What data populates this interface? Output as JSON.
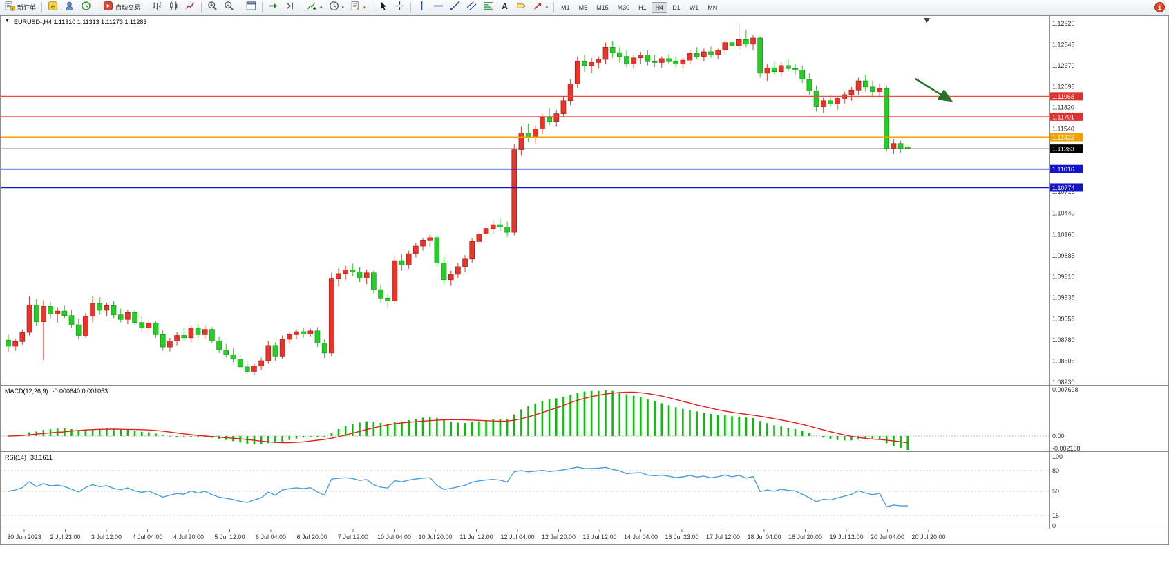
{
  "window": {
    "collapse_marker": "▼"
  },
  "toolbar": {
    "groups": [
      {
        "items": [
          {
            "name": "new-order-button",
            "icon": "new-order-icon",
            "label": "新订单"
          }
        ]
      },
      {
        "items": [
          {
            "name": "metaeditor-button",
            "icon": "metaeditor-icon"
          },
          {
            "name": "profile-button",
            "icon": "user-icon"
          },
          {
            "name": "history-center-button",
            "icon": "history-icon"
          }
        ]
      },
      {
        "items": [
          {
            "name": "autotrading-button",
            "icon": "autotrading-icon",
            "label": "自动交易"
          }
        ]
      },
      {
        "items": [
          {
            "name": "chart-bars-button",
            "icon": "bar-chart-icon"
          },
          {
            "name": "chart-candles-button",
            "icon": "candlestick-icon"
          },
          {
            "name": "chart-line-button",
            "icon": "line-chart-icon"
          }
        ]
      },
      {
        "items": [
          {
            "name": "zoom-in-button",
            "icon": "zoom-in-icon"
          },
          {
            "name": "zoom-out-button",
            "icon": "zoom-out-icon"
          }
        ]
      },
      {
        "items": [
          {
            "name": "tile-windows-button",
            "icon": "tile-windows-icon"
          }
        ]
      },
      {
        "items": [
          {
            "name": "auto-scroll-button",
            "icon": "auto-scroll-icon"
          },
          {
            "name": "chart-shift-button",
            "icon": "chart-shift-icon"
          }
        ]
      },
      {
        "items": [
          {
            "name": "indicators-button",
            "icon": "add-indicator-icon",
            "caret": true
          },
          {
            "name": "periods-button",
            "icon": "clock-icon",
            "caret": true
          },
          {
            "name": "templates-button",
            "icon": "template-icon",
            "caret": true
          }
        ]
      },
      {
        "items": [
          {
            "name": "cursor-button",
            "icon": "cursor-icon"
          },
          {
            "name": "crosshair-button",
            "icon": "crosshair-icon"
          }
        ]
      },
      {
        "items": [
          {
            "name": "vertical-line-button",
            "icon": "vertical-line-icon"
          },
          {
            "name": "horizontal-line-button",
            "icon": "horizontal-line-icon"
          },
          {
            "name": "trendline-button",
            "icon": "trendline-icon"
          },
          {
            "name": "channel-button",
            "icon": "channel-icon"
          },
          {
            "name": "fibonacci-button",
            "icon": "fibonacci-icon"
          },
          {
            "name": "text-button",
            "icon": "text-icon"
          },
          {
            "name": "label-button",
            "icon": "label-icon"
          },
          {
            "name": "arrows-button",
            "icon": "arrows-icon",
            "caret": true
          }
        ]
      }
    ],
    "timeframes": [
      "M1",
      "M5",
      "M15",
      "M30",
      "H1",
      "H4",
      "D1",
      "W1",
      "MN"
    ],
    "active_timeframe": "H4",
    "notification_badge": "1"
  },
  "chart": {
    "title": "EURUSD-,H4 1.11310 1.11313 1.11273 1.11283",
    "y_range": [
      1.0823,
      1.1292
    ],
    "price_axis_labels": [
      "1.12920",
      "1.12645",
      "1.12370",
      "1.12095",
      "1.11820",
      "1.11540",
      "1.10715",
      "1.10440",
      "1.10160",
      "1.09885",
      "1.09610",
      "1.09335",
      "1.09055",
      "1.08780",
      "1.08505",
      "1.08230"
    ],
    "price_tags": [
      {
        "value": "1.11968",
        "price": 1.11968,
        "color": "#e03030",
        "line_color": "#ef4a4a",
        "line_width": 1.2,
        "name": "resistance-line-1"
      },
      {
        "value": "1.11701",
        "price": 1.11701,
        "color": "#e03030",
        "line_color": "#ef4a4a",
        "line_width": 1.2,
        "name": "resistance-line-2"
      },
      {
        "value": "1.11433",
        "price": 1.11433,
        "color": "#f0a200",
        "line_color": "#f0a200",
        "line_width": 2,
        "name": "pivot-line"
      },
      {
        "value": "1.11283",
        "price": 1.11283,
        "color": "#000000",
        "line_color": "#5a5a5a",
        "line_width": 1,
        "name": "bid-price-line"
      },
      {
        "value": "1.11016",
        "price": 1.11016,
        "color": "#1414cc",
        "line_color": "#1414cc",
        "line_width": 1.6,
        "name": "support-line-1"
      },
      {
        "value": "1.10774",
        "price": 1.10774,
        "color": "#1414cc",
        "line_color": "#1414cc",
        "line_width": 1.6,
        "name": "support-line-2"
      }
    ],
    "time_labels": [
      "30 Jun 2023",
      "2 Jul 23:00",
      "3 Jul 12:00",
      "4 Jul 04:00",
      "4 Jul 20:00",
      "5 Jul 12:00",
      "6 Jul 04:00",
      "6 Jul 20:00",
      "7 Jul 12:00",
      "10 Jul 04:00",
      "10 Jul 20:00",
      "11 Jul 12:00",
      "12 Jul 04:00",
      "12 Jul 20:00",
      "13 Jul 12:00",
      "14 Jul 04:00",
      "16 Jul 23:00",
      "17 Jul 12:00",
      "18 Jul 04:00",
      "18 Jul 20:00",
      "19 Jul 12:00",
      "20 Jul 04:00",
      "20 Jul 20:00"
    ]
  },
  "chart_data": {
    "type": "candlestick",
    "symbol": "EURUSD-",
    "timeframe": "H4",
    "up_color": "#e8352a",
    "down_color": "#27cd27",
    "ohlc": [
      [
        1.0878,
        1.0885,
        1.0862,
        1.087
      ],
      [
        1.087,
        1.088,
        1.0864,
        1.0876
      ],
      [
        1.0876,
        1.0892,
        1.0872,
        1.0888
      ],
      [
        1.0888,
        1.0935,
        1.0884,
        1.0924
      ],
      [
        1.0924,
        1.0932,
        1.0896,
        1.0902
      ],
      [
        1.0902,
        1.093,
        1.0852,
        1.0922
      ],
      [
        1.0922,
        1.0928,
        1.0906,
        1.0912
      ],
      [
        1.0912,
        1.0921,
        1.0901,
        1.0916
      ],
      [
        1.0916,
        1.0923,
        1.0907,
        1.091
      ],
      [
        1.091,
        1.0918,
        1.0894,
        1.0898
      ],
      [
        1.0898,
        1.0906,
        1.0879,
        1.0884
      ],
      [
        1.0884,
        1.0913,
        1.0881,
        1.0909
      ],
      [
        1.0909,
        1.0936,
        1.0901,
        1.0926
      ],
      [
        1.0926,
        1.0934,
        1.0911,
        1.0917
      ],
      [
        1.0917,
        1.0927,
        1.0909,
        1.0923
      ],
      [
        1.0923,
        1.0929,
        1.0907,
        1.0911
      ],
      [
        1.0911,
        1.0919,
        1.0901,
        1.0905
      ],
      [
        1.0905,
        1.0917,
        1.0899,
        1.0914
      ],
      [
        1.0914,
        1.0917,
        1.0897,
        1.0901
      ],
      [
        1.0901,
        1.0909,
        1.0889,
        1.0894
      ],
      [
        1.0894,
        1.0904,
        1.0887,
        1.09
      ],
      [
        1.09,
        1.0903,
        1.0881,
        1.0885
      ],
      [
        1.0885,
        1.0891,
        1.0864,
        1.0869
      ],
      [
        1.0869,
        1.0881,
        1.0863,
        1.0877
      ],
      [
        1.0877,
        1.0889,
        1.0871,
        1.0884
      ],
      [
        1.0884,
        1.0894,
        1.0877,
        1.0881
      ],
      [
        1.0881,
        1.0897,
        1.0875,
        1.0894
      ],
      [
        1.0894,
        1.0899,
        1.0881,
        1.0885
      ],
      [
        1.0885,
        1.0897,
        1.0879,
        1.0892
      ],
      [
        1.0892,
        1.0895,
        1.0874,
        1.0877
      ],
      [
        1.0877,
        1.0883,
        1.0861,
        1.0865
      ],
      [
        1.0865,
        1.0873,
        1.0855,
        1.0859
      ],
      [
        1.0859,
        1.0867,
        1.0849,
        1.0853
      ],
      [
        1.0853,
        1.0859,
        1.0839,
        1.0843
      ],
      [
        1.0843,
        1.0851,
        1.0834,
        1.0837
      ],
      [
        1.0837,
        1.0847,
        1.0833,
        1.0844
      ],
      [
        1.0844,
        1.0855,
        1.0839,
        1.0851
      ],
      [
        1.0851,
        1.0877,
        1.0847,
        1.0871
      ],
      [
        1.0871,
        1.0875,
        1.0851,
        1.0857
      ],
      [
        1.0857,
        1.0884,
        1.0853,
        1.0879
      ],
      [
        1.0879,
        1.0889,
        1.0873,
        1.0885
      ],
      [
        1.0885,
        1.0892,
        1.0879,
        1.0889
      ],
      [
        1.0889,
        1.0894,
        1.0881,
        1.0886
      ],
      [
        1.0886,
        1.0893,
        1.0883,
        1.089
      ],
      [
        1.089,
        1.0895,
        1.0869,
        1.0874
      ],
      [
        1.0874,
        1.0879,
        1.0854,
        1.0861
      ],
      [
        1.0861,
        1.0966,
        1.0857,
        1.0958
      ],
      [
        1.0958,
        1.0972,
        1.0948,
        1.0965
      ],
      [
        1.0965,
        1.0975,
        1.0957,
        1.097
      ],
      [
        1.097,
        1.0978,
        1.0961,
        1.0967
      ],
      [
        1.0967,
        1.0973,
        1.0954,
        1.0959
      ],
      [
        1.0959,
        1.097,
        1.0951,
        1.0966
      ],
      [
        1.0966,
        1.0969,
        1.0939,
        1.0944
      ],
      [
        1.0944,
        1.0951,
        1.0927,
        1.0933
      ],
      [
        1.0933,
        1.0939,
        1.0921,
        1.0929
      ],
      [
        1.0929,
        1.0988,
        1.0925,
        1.0982
      ],
      [
        1.0982,
        1.099,
        1.0969,
        1.0976
      ],
      [
        1.0976,
        1.0995,
        1.0971,
        1.0991
      ],
      [
        1.0991,
        1.1005,
        1.0986,
        1.1001
      ],
      [
        1.1001,
        1.1012,
        1.0995,
        1.1008
      ],
      [
        1.1008,
        1.1016,
        1.1,
        1.1012
      ],
      [
        1.1012,
        1.1015,
        1.0974,
        1.0979
      ],
      [
        1.0979,
        1.0987,
        1.0951,
        1.0957
      ],
      [
        1.0957,
        1.0969,
        1.0949,
        1.0964
      ],
      [
        1.0964,
        1.0979,
        1.0959,
        1.0974
      ],
      [
        1.0974,
        1.0989,
        1.0967,
        1.0984
      ],
      [
        1.0984,
        1.1012,
        1.0979,
        1.1007
      ],
      [
        1.1007,
        1.1021,
        1.1001,
        1.1017
      ],
      [
        1.1017,
        1.1029,
        1.1011,
        1.1024
      ],
      [
        1.1024,
        1.1034,
        1.1017,
        1.1029
      ],
      [
        1.1029,
        1.1037,
        1.1021,
        1.1026
      ],
      [
        1.1026,
        1.1033,
        1.1013,
        1.1019
      ],
      [
        1.1019,
        1.1134,
        1.1015,
        1.1127
      ],
      [
        1.1127,
        1.1157,
        1.1119,
        1.1149
      ],
      [
        1.1149,
        1.1161,
        1.1137,
        1.1143
      ],
      [
        1.1143,
        1.1159,
        1.1135,
        1.1154
      ],
      [
        1.1154,
        1.1174,
        1.1147,
        1.1169
      ],
      [
        1.1169,
        1.1181,
        1.1159,
        1.1164
      ],
      [
        1.1164,
        1.1179,
        1.1157,
        1.1174
      ],
      [
        1.1174,
        1.1197,
        1.1169,
        1.1191
      ],
      [
        1.1191,
        1.1219,
        1.1185,
        1.1213
      ],
      [
        1.1213,
        1.1249,
        1.1207,
        1.1243
      ],
      [
        1.1243,
        1.1251,
        1.1229,
        1.1237
      ],
      [
        1.1237,
        1.1247,
        1.1227,
        1.1241
      ],
      [
        1.1241,
        1.1249,
        1.1233,
        1.1245
      ],
      [
        1.1245,
        1.1267,
        1.1239,
        1.1261
      ],
      [
        1.1261,
        1.1269,
        1.1247,
        1.1254
      ],
      [
        1.1254,
        1.1261,
        1.1241,
        1.1249
      ],
      [
        1.1249,
        1.1257,
        1.1235,
        1.1239
      ],
      [
        1.1239,
        1.1251,
        1.1233,
        1.1247
      ],
      [
        1.1247,
        1.1255,
        1.1239,
        1.1251
      ],
      [
        1.1251,
        1.1257,
        1.1237,
        1.1243
      ],
      [
        1.1243,
        1.1251,
        1.1235,
        1.1241
      ],
      [
        1.1241,
        1.1249,
        1.1234,
        1.1246
      ],
      [
        1.1246,
        1.1252,
        1.1239,
        1.1243
      ],
      [
        1.1243,
        1.1249,
        1.1235,
        1.1239
      ],
      [
        1.1239,
        1.1247,
        1.1233,
        1.1244
      ],
      [
        1.1244,
        1.1257,
        1.1239,
        1.1253
      ],
      [
        1.1253,
        1.1261,
        1.1245,
        1.1249
      ],
      [
        1.1249,
        1.1259,
        1.1243,
        1.1255
      ],
      [
        1.1255,
        1.1262,
        1.1247,
        1.1251
      ],
      [
        1.1251,
        1.1259,
        1.1245,
        1.1257
      ],
      [
        1.1257,
        1.1271,
        1.1251,
        1.1267
      ],
      [
        1.1267,
        1.1279,
        1.1259,
        1.1263
      ],
      [
        1.1263,
        1.1291,
        1.1257,
        1.1271
      ],
      [
        1.1271,
        1.1284,
        1.1261,
        1.1265
      ],
      [
        1.1265,
        1.1277,
        1.1257,
        1.1273
      ],
      [
        1.1273,
        1.1275,
        1.1221,
        1.1227
      ],
      [
        1.1227,
        1.1239,
        1.1217,
        1.1234
      ],
      [
        1.1234,
        1.1243,
        1.1225,
        1.1229
      ],
      [
        1.1229,
        1.1241,
        1.1223,
        1.1237
      ],
      [
        1.1237,
        1.1245,
        1.1229,
        1.1233
      ],
      [
        1.1233,
        1.1239,
        1.1225,
        1.1231
      ],
      [
        1.1231,
        1.1237,
        1.1214,
        1.1219
      ],
      [
        1.1219,
        1.1227,
        1.1199,
        1.1204
      ],
      [
        1.1204,
        1.1211,
        1.1177,
        1.1183
      ],
      [
        1.1183,
        1.1195,
        1.1175,
        1.1191
      ],
      [
        1.1191,
        1.1199,
        1.1183,
        1.1187
      ],
      [
        1.1187,
        1.1197,
        1.1179,
        1.1194
      ],
      [
        1.1194,
        1.1203,
        1.1187,
        1.1199
      ],
      [
        1.1199,
        1.1209,
        1.1191,
        1.1205
      ],
      [
        1.1205,
        1.1221,
        1.1199,
        1.1217
      ],
      [
        1.1217,
        1.1225,
        1.1203,
        1.1209
      ],
      [
        1.1209,
        1.1217,
        1.1197,
        1.1203
      ],
      [
        1.1203,
        1.1213,
        1.1195,
        1.1207
      ],
      [
        1.1207,
        1.1211,
        1.1125,
        1.1129
      ],
      [
        1.1129,
        1.1141,
        1.1121,
        1.1135
      ],
      [
        1.1135,
        1.1139,
        1.1123,
        1.1128
      ],
      [
        1.1131,
        1.11313,
        1.11273,
        1.11283
      ]
    ]
  },
  "indicators": {
    "macd": {
      "label": "MACD(12,26,9)",
      "values": "-0.000640 0.001053",
      "fast": 12,
      "slow": 26,
      "signal": 9,
      "axis_labels": [
        "0.007698",
        "0.00",
        "-0.002168"
      ],
      "histogram_color": "#00c400",
      "signal_color": "#e02020"
    },
    "rsi": {
      "label": "RSI(14)",
      "value": "33.1611",
      "period": 14,
      "axis_labels": [
        "100",
        "80",
        "50",
        "15",
        "0"
      ],
      "levels": [
        80,
        50,
        15
      ],
      "line_color": "#4a9fd8"
    }
  },
  "annotations": {
    "trend_arrow": {
      "color": "#267326",
      "direction": "down-right"
    }
  }
}
